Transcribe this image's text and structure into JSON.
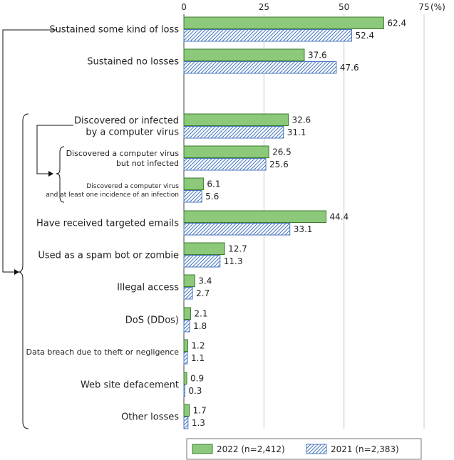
{
  "chart_data": {
    "type": "bar",
    "orientation": "horizontal",
    "unit": "(%)",
    "xlim": [
      0,
      75
    ],
    "ticks": [
      0,
      25,
      50,
      75
    ],
    "grid": true,
    "legend_position": "bottom-right",
    "categories": [
      {
        "label": [
          "Sustained some kind of loss"
        ],
        "font": 13
      },
      {
        "label": [
          "Sustained no losses"
        ],
        "font": 13
      },
      {
        "label": [
          "Discovered or infected",
          "by a computer virus"
        ],
        "font": 13
      },
      {
        "label": [
          "Discovered a computer virus",
          "but not infected"
        ],
        "font": 11
      },
      {
        "label": [
          "Discovered a computer virus",
          "and at least one incidence of an infection"
        ],
        "font": 9
      },
      {
        "label": [
          "Have received targeted emails"
        ],
        "font": 13
      },
      {
        "label": [
          "Used as a spam bot or zombie"
        ],
        "font": 13
      },
      {
        "label": [
          "Illegal access"
        ],
        "font": 13
      },
      {
        "label": [
          "DoS (DDos)"
        ],
        "font": 13
      },
      {
        "label": [
          "Data breach due to theft or negligence"
        ],
        "font": 11
      },
      {
        "label": [
          "Web site defacement"
        ],
        "font": 13
      },
      {
        "label": [
          "Other losses"
        ],
        "font": 13
      }
    ],
    "series": [
      {
        "name": "2022 (n=2,412)",
        "color": "#8dc97a",
        "pattern": "solid",
        "values": [
          62.4,
          37.6,
          32.6,
          26.5,
          6.1,
          44.4,
          12.7,
          3.4,
          2.1,
          1.2,
          0.9,
          1.7
        ]
      },
      {
        "name": "2021 (n=2,383)",
        "color": "#4a78c0",
        "pattern": "hatched",
        "values": [
          52.4,
          47.6,
          31.1,
          25.6,
          5.6,
          33.1,
          11.3,
          2.7,
          1.8,
          1.1,
          0.3,
          1.3
        ]
      }
    ]
  }
}
